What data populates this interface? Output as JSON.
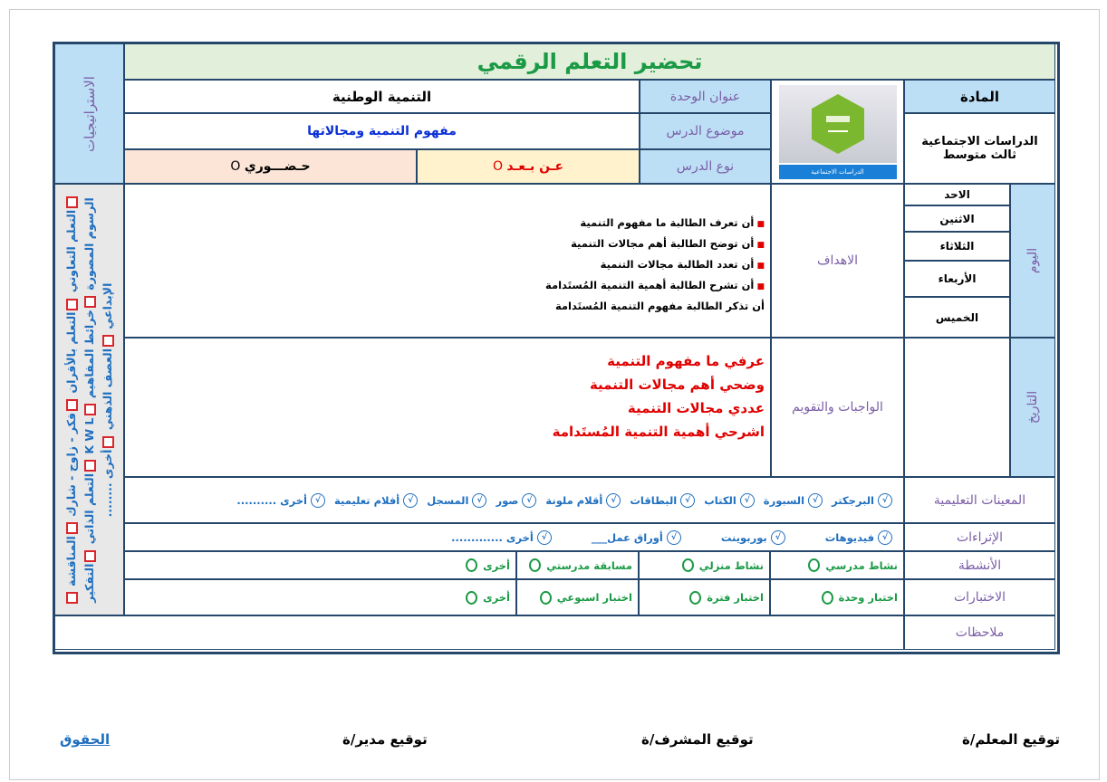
{
  "title": "تحضير التعلم الرقمي",
  "unit": {
    "label": "عنوان الوحدة",
    "value": "التنمية الوطنية"
  },
  "topic": {
    "label": "موضوع الدرس",
    "value": "مفهوم التنمية ومجالاتها"
  },
  "lesson_type": {
    "label": "نوع الدرس",
    "in_person": "حـضـــوري",
    "remote": "عـن بـعـد",
    "mark": "O"
  },
  "subject": {
    "label": "المادة",
    "value_line1": "الدراسات الاجتماعية",
    "value_line2": "ثالث متوسط",
    "logo_caption": "الدراسات الاجتماعية"
  },
  "strategies": {
    "label": "الاستراتيجيات",
    "items": [
      "التعلم التعاوني",
      "التعلم بالأقران",
      "فكر - زاوج - شارك",
      "المناقشة",
      "الرسوم المصورة",
      "خرائط المفاهيم",
      "K W L",
      "التعلم الذاتي",
      "التفكير الإبداعي",
      "العصف الذهني",
      "أخرى ........"
    ]
  },
  "days": {
    "label": "اليوم",
    "items": [
      "الاحد",
      "الاثنين",
      "الثلاثاء",
      "الأربعاء",
      "الخميس"
    ]
  },
  "date_label": "التاريخ",
  "objectives": {
    "label": "الاهداف",
    "items": [
      "أن تعرف الطالبة ما مفهوم التنمية",
      "أن توضح الطالبة أهم مجالات التنمية",
      "أن تعدد الطالبة مجالات التنمية",
      "أن تشرح الطالبة أهمية التنمية المُستَدامة"
    ],
    "last": "أن تذكر الطالبة مفهوم التنمية المُستَدامة"
  },
  "homework": {
    "label": "الواجبات والتقويم",
    "items": [
      "عرفي ما مفهوم التنمية",
      "وضحي أهم مجالات التنمية",
      "عددي مجالات التنمية",
      "اشرحي أهمية التنمية المُستَدامة"
    ]
  },
  "aids": {
    "label": "المعينات التعليمية",
    "items": [
      "البرجكتر",
      "السبورة",
      "الكتاب",
      "البطاقات",
      "أقلام ملونة",
      "صور",
      "المسجل",
      "أفلام تعليمية",
      "أخرى .........."
    ]
  },
  "enrichment": {
    "label": "الإثراءات",
    "items": [
      "فيديوهات",
      "بوربوينت",
      "أوراق عمل___",
      "أخرى ............."
    ]
  },
  "activities": {
    "label": "الأنشطة",
    "items": [
      "نشاط مدرسي",
      "نشاط منزلي",
      "مسابقة مدرستي",
      "أخرى"
    ]
  },
  "tests": {
    "label": "الاختبارات",
    "items": [
      "اختبار وحدة",
      "اختبار فترة",
      "اختبار اسبوعي",
      "أخرى"
    ]
  },
  "notes": {
    "label": "ملاحظات"
  },
  "signatures": {
    "teacher": "توقيع المعلم/ة",
    "supervisor": "توقيع المشرف/ة",
    "principal": "توقيع مدير/ة",
    "rights": "الحقوق"
  },
  "colors": {
    "border": "#24476b",
    "title_green": "#1a9a45",
    "title_bg": "#e2efda",
    "label_blue_bg": "#bcdff5",
    "remote_bg": "#fff2cc",
    "in_person_bg": "#fce4d6",
    "homework_red": "#e00000",
    "topic_blue": "#0a2fd6"
  }
}
